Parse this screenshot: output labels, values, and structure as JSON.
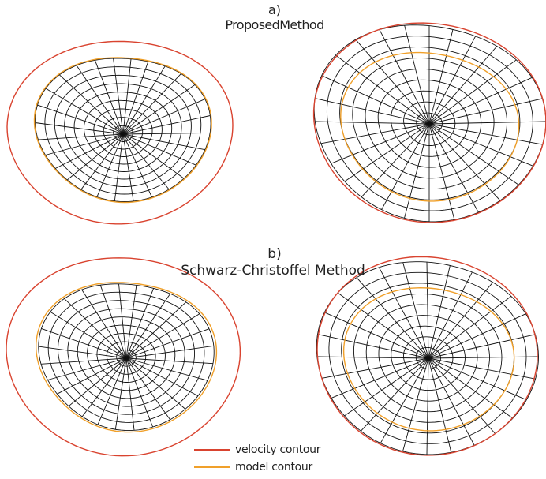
{
  "figure": {
    "panel_a": {
      "letter": "a)",
      "title": "ProposedMethod"
    },
    "panel_b": {
      "letter": "b)",
      "title": "Schwarz-Christoffel Method"
    },
    "legend": {
      "velocity_label": "velocity contour",
      "model_label": "model contour"
    },
    "colors": {
      "velocity_contour": "#d9432f",
      "model_contour": "#f0a02a",
      "mesh": "#111111"
    },
    "mesh": {
      "radial_spokes": 28,
      "concentric_rings": 9
    }
  }
}
